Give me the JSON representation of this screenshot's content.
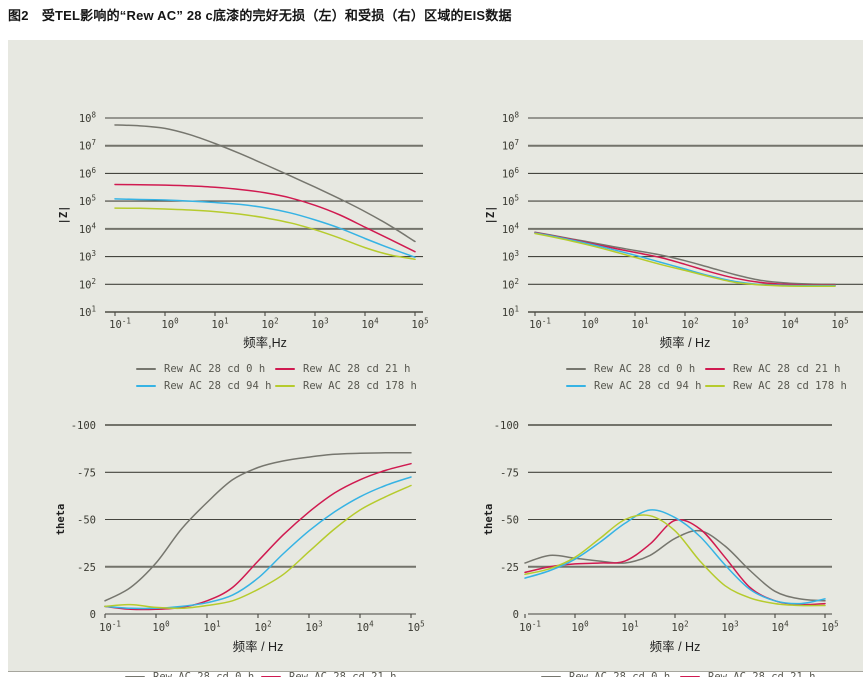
{
  "title": "图2　受TEL影响的“Rew AC” 28 c底漆的完好无损（左）和受损（右）区域的EIS数据",
  "panel_bg": "#e7e8e1",
  "grid_color": "#45453e",
  "grid_emphasis_color": "#73736b",
  "series": [
    {
      "label": "Rew AC 28  cd 0 h",
      "color": "#76766e"
    },
    {
      "label": "Rew AC 28  cd 21 h",
      "color": "#d01a50"
    },
    {
      "label": "Rew AC 28  cd 94 h",
      "color": "#36b3e4"
    },
    {
      "label": "Rew AC 28  cd 178 h",
      "color": "#b6cb2d"
    }
  ],
  "chart_data": [
    {
      "id": "bode-magnitude-intact",
      "type": "line",
      "x_label": "频率,Hz",
      "y_label": "|Z|",
      "x_scale": "log",
      "x_tick_exponents": [
        -1,
        0,
        1,
        2,
        3,
        4,
        5
      ],
      "y_axis": {
        "scale": "log",
        "tick_exponents": [
          8,
          7,
          6,
          5,
          4,
          3,
          2,
          1
        ],
        "range_log10": [
          1,
          8
        ]
      },
      "series": [
        {
          "name": "Rew AC 28 cd 0 h",
          "points": [
            [
              0.1,
              56000000
            ],
            [
              0.316,
              52000000
            ],
            [
              1,
              42000000
            ],
            [
              3.16,
              25000000
            ],
            [
              10,
              12000000
            ],
            [
              31.6,
              5200000
            ],
            [
              100,
              2100000
            ],
            [
              316,
              830000
            ],
            [
              1000,
              320000
            ],
            [
              3160,
              120000
            ],
            [
              10000,
              42000
            ],
            [
              31600,
              13000
            ],
            [
              100000,
              3500
            ]
          ]
        },
        {
          "name": "Rew AC 28 cd 21 h",
          "points": [
            [
              0.1,
              400000
            ],
            [
              0.316,
              390000
            ],
            [
              1,
              380000
            ],
            [
              3.16,
              355000
            ],
            [
              10,
              316000
            ],
            [
              31.6,
              263000
            ],
            [
              100,
              200000
            ],
            [
              316,
              132000
            ],
            [
              1000,
              71000
            ],
            [
              3160,
              31600
            ],
            [
              10000,
              11500
            ],
            [
              31600,
              4200
            ],
            [
              100000,
              1500
            ]
          ]
        },
        {
          "name": "Rew AC 28 cd 94 h",
          "points": [
            [
              0.1,
              120000
            ],
            [
              0.316,
              115000
            ],
            [
              1,
              110000
            ],
            [
              3.16,
              100000
            ],
            [
              10,
              89000
            ],
            [
              31.6,
              76000
            ],
            [
              100,
              58000
            ],
            [
              316,
              38000
            ],
            [
              1000,
              21000
            ],
            [
              3160,
              10500
            ],
            [
              10000,
              4500
            ],
            [
              31600,
              2000
            ],
            [
              100000,
              950
            ]
          ]
        },
        {
          "name": "Rew AC 28 cd 178 h",
          "points": [
            [
              0.1,
              56000
            ],
            [
              0.316,
              55000
            ],
            [
              1,
              52000
            ],
            [
              3.16,
              48000
            ],
            [
              10,
              42000
            ],
            [
              31.6,
              34000
            ],
            [
              100,
              25000
            ],
            [
              316,
              16600
            ],
            [
              1000,
              9300
            ],
            [
              3160,
              4600
            ],
            [
              10000,
              2100
            ],
            [
              31600,
              1150
            ],
            [
              100000,
              800
            ]
          ]
        }
      ]
    },
    {
      "id": "bode-magnitude-damaged",
      "type": "line",
      "x_label": "频率 / Hz",
      "y_label": "|Z|",
      "x_scale": "log",
      "x_tick_exponents": [
        -1,
        0,
        1,
        2,
        3,
        4,
        5
      ],
      "y_axis": {
        "scale": "log",
        "tick_exponents": [
          8,
          7,
          6,
          5,
          4,
          3,
          2,
          1
        ],
        "range_log10": [
          1,
          8
        ]
      },
      "series": [
        {
          "name": "Rew AC 28 cd 0 h",
          "points": [
            [
              0.1,
              7600
            ],
            [
              0.316,
              5200
            ],
            [
              1,
              3550
            ],
            [
              3.16,
              2400
            ],
            [
              10,
              1660
            ],
            [
              31.6,
              1150
            ],
            [
              100,
              710
            ],
            [
              316,
              400
            ],
            [
              1000,
              224
            ],
            [
              3160,
              141
            ],
            [
              10000,
              112
            ],
            [
              31600,
              102
            ],
            [
              100000,
              100
            ]
          ]
        },
        {
          "name": "Rew AC 28 cd 21 h",
          "points": [
            [
              0.1,
              7400
            ],
            [
              0.316,
              5000
            ],
            [
              1,
              3300
            ],
            [
              3.16,
              2140
            ],
            [
              10,
              1410
            ],
            [
              31.6,
              930
            ],
            [
              100,
              525
            ],
            [
              316,
              282
            ],
            [
              1000,
              166
            ],
            [
              3160,
              117
            ],
            [
              10000,
              100
            ],
            [
              31600,
              93
            ],
            [
              100000,
              93
            ]
          ]
        },
        {
          "name": "Rew AC 28 cd 94 h",
          "points": [
            [
              0.1,
              7100
            ],
            [
              0.316,
              4800
            ],
            [
              1,
              3100
            ],
            [
              3.16,
              1900
            ],
            [
              10,
              1120
            ],
            [
              31.6,
              630
            ],
            [
              100,
              355
            ],
            [
              316,
              200
            ],
            [
              1000,
              126
            ],
            [
              3160,
              98
            ],
            [
              10000,
              91
            ],
            [
              31600,
              89
            ],
            [
              100000,
              89
            ]
          ]
        },
        {
          "name": "Rew AC 28 cd 178 h",
          "points": [
            [
              0.1,
              6800
            ],
            [
              0.316,
              4500
            ],
            [
              1,
              2800
            ],
            [
              3.16,
              1660
            ],
            [
              10,
              930
            ],
            [
              31.6,
              525
            ],
            [
              100,
              316
            ],
            [
              316,
              186
            ],
            [
              1000,
              117
            ],
            [
              3160,
              95
            ],
            [
              10000,
              87
            ],
            [
              31600,
              85
            ],
            [
              100000,
              85
            ]
          ]
        }
      ]
    },
    {
      "id": "phase-intact",
      "type": "line",
      "x_label": "频率 / Hz",
      "y_label": "theta",
      "x_scale": "log",
      "x_tick_exponents": [
        -1,
        0,
        1,
        2,
        3,
        4,
        5
      ],
      "y_axis": {
        "scale": "linear",
        "ticks": [
          -100,
          -75,
          -50,
          -25,
          0
        ],
        "range": [
          -100,
          0
        ]
      },
      "series": [
        {
          "name": "Rew AC 28 cd 0 h",
          "points": [
            [
              0.1,
              -7
            ],
            [
              0.316,
              -14
            ],
            [
              1,
              -27
            ],
            [
              3.16,
              -45
            ],
            [
              10,
              -59
            ],
            [
              31.6,
              -71
            ],
            [
              100,
              -77.5
            ],
            [
              316,
              -81
            ],
            [
              1000,
              -83
            ],
            [
              3160,
              -84.5
            ],
            [
              10000,
              -85
            ],
            [
              31600,
              -85.3
            ],
            [
              100000,
              -85.3
            ]
          ]
        },
        {
          "name": "Rew AC 28 cd 21 h",
          "points": [
            [
              0.1,
              -4
            ],
            [
              0.316,
              -2.5
            ],
            [
              1,
              -2.5
            ],
            [
              3.16,
              -3.5
            ],
            [
              10,
              -7
            ],
            [
              31.6,
              -14
            ],
            [
              100,
              -28
            ],
            [
              316,
              -42
            ],
            [
              1000,
              -54
            ],
            [
              3160,
              -64
            ],
            [
              10000,
              -71
            ],
            [
              31600,
              -76
            ],
            [
              100000,
              -79.5
            ]
          ]
        },
        {
          "name": "Rew AC 28 cd 94 h",
          "points": [
            [
              0.1,
              -4
            ],
            [
              0.316,
              -3
            ],
            [
              1,
              -3
            ],
            [
              3.16,
              -4
            ],
            [
              10,
              -6
            ],
            [
              31.6,
              -10
            ],
            [
              100,
              -19
            ],
            [
              316,
              -32
            ],
            [
              1000,
              -44
            ],
            [
              3160,
              -54
            ],
            [
              10000,
              -62
            ],
            [
              31600,
              -68
            ],
            [
              100000,
              -72.5
            ]
          ]
        },
        {
          "name": "Rew AC 28 cd 178 h",
          "points": [
            [
              0.1,
              -4
            ],
            [
              0.316,
              -5
            ],
            [
              1,
              -3.5
            ],
            [
              3.16,
              -3
            ],
            [
              10,
              -4.5
            ],
            [
              31.6,
              -7
            ],
            [
              100,
              -13
            ],
            [
              316,
              -21
            ],
            [
              1000,
              -33
            ],
            [
              3160,
              -45
            ],
            [
              10000,
              -55
            ],
            [
              31600,
              -62
            ],
            [
              100000,
              -68
            ]
          ]
        }
      ]
    },
    {
      "id": "phase-damaged",
      "type": "line",
      "x_label": "频率 / Hz",
      "y_label": "theta",
      "x_scale": "log",
      "x_tick_exponents": [
        -1,
        0,
        1,
        2,
        3,
        4,
        5
      ],
      "y_axis": {
        "scale": "linear",
        "ticks": [
          -100,
          -75,
          -50,
          -25,
          0
        ],
        "range": [
          -100,
          0
        ]
      },
      "series": [
        {
          "name": "Rew AC 28 cd 0 h",
          "points": [
            [
              0.1,
              -27
            ],
            [
              0.316,
              -31
            ],
            [
              1,
              -29.5
            ],
            [
              3.16,
              -28
            ],
            [
              10,
              -27
            ],
            [
              31.6,
              -31
            ],
            [
              100,
              -40
            ],
            [
              316,
              -44
            ],
            [
              1000,
              -36
            ],
            [
              3160,
              -23
            ],
            [
              10000,
              -12
            ],
            [
              31600,
              -8
            ],
            [
              100000,
              -7
            ]
          ]
        },
        {
          "name": "Rew AC 28 cd 21 h",
          "points": [
            [
              0.1,
              -22
            ],
            [
              0.316,
              -25
            ],
            [
              1,
              -26.5
            ],
            [
              3.16,
              -27
            ],
            [
              10,
              -28
            ],
            [
              31.6,
              -37
            ],
            [
              100,
              -49.5
            ],
            [
              316,
              -45
            ],
            [
              1000,
              -30
            ],
            [
              3160,
              -14
            ],
            [
              10000,
              -7
            ],
            [
              31600,
              -5
            ],
            [
              100000,
              -5.5
            ]
          ]
        },
        {
          "name": "Rew AC 28 cd 94 h",
          "points": [
            [
              0.1,
              -19
            ],
            [
              0.316,
              -23
            ],
            [
              1,
              -29
            ],
            [
              3.16,
              -38
            ],
            [
              10,
              -48
            ],
            [
              31.6,
              -55
            ],
            [
              100,
              -51
            ],
            [
              316,
              -41
            ],
            [
              1000,
              -26
            ],
            [
              3160,
              -13
            ],
            [
              10000,
              -7
            ],
            [
              31600,
              -5.5
            ],
            [
              100000,
              -8
            ]
          ]
        },
        {
          "name": "Rew AC 28 cd 178 h",
          "points": [
            [
              0.1,
              -21
            ],
            [
              0.316,
              -24
            ],
            [
              1,
              -30
            ],
            [
              3.16,
              -40
            ],
            [
              10,
              -50
            ],
            [
              31.6,
              -52
            ],
            [
              100,
              -44
            ],
            [
              316,
              -28
            ],
            [
              1000,
              -15
            ],
            [
              3160,
              -8.5
            ],
            [
              10000,
              -5.5
            ],
            [
              31600,
              -4.5
            ],
            [
              100000,
              -4.5
            ]
          ]
        }
      ]
    }
  ]
}
